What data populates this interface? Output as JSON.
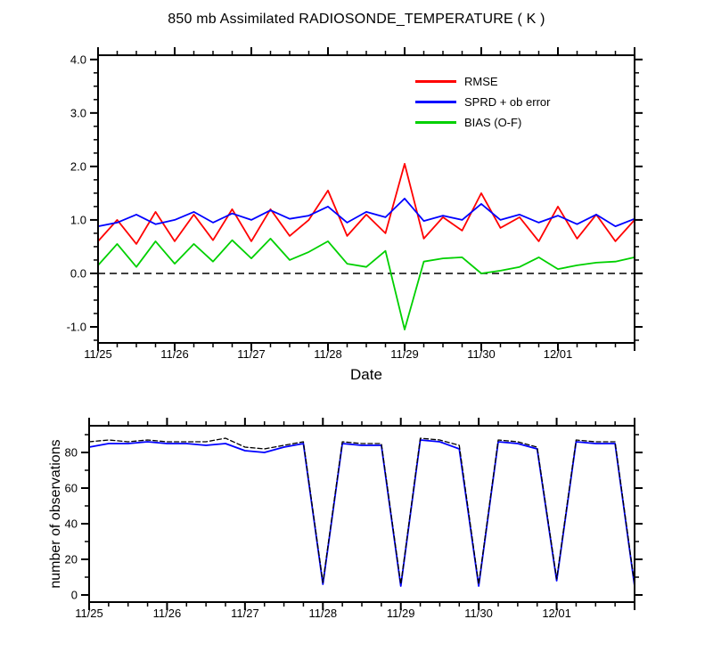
{
  "chart_data": [
    {
      "type": "line",
      "title": "850 mb Assimilated RADIOSONDE_TEMPERATURE ( K )",
      "xlabel": "Date",
      "ylabel": "",
      "ylim": [
        -1.3,
        4.08
      ],
      "yticks": [
        -1.0,
        0.0,
        1.0,
        2.0,
        3.0,
        4.0
      ],
      "ytick_labels": [
        "-1.0",
        "0.0",
        "1.0",
        "2.0",
        "3.0",
        "4.0"
      ],
      "y_minor_step": 0.25,
      "n_points": 29,
      "x_major_every": 4,
      "x_tick_indices": [
        0,
        4,
        8,
        12,
        16,
        20,
        24
      ],
      "x_tick_labels": [
        "11/25",
        "11/26",
        "11/27",
        "11/28",
        "11/29",
        "11/30",
        "12/01"
      ],
      "ref_line_y": 0.0,
      "ref_line_style": "dashed",
      "grid": false,
      "legend_position": "upper-right-inside",
      "series": [
        {
          "name": "RMSE",
          "color": "#ff0000",
          "style": "solid",
          "values": [
            0.6,
            1.0,
            0.55,
            1.15,
            0.6,
            1.1,
            0.62,
            1.2,
            0.6,
            1.2,
            0.7,
            1.0,
            1.55,
            0.7,
            1.1,
            0.75,
            2.05,
            0.65,
            1.05,
            0.8,
            1.5,
            0.85,
            1.05,
            0.6,
            1.25,
            0.65,
            1.1,
            0.6,
            1.0
          ]
        },
        {
          "name": "SPRD + ob error",
          "color": "#0000ff",
          "style": "solid",
          "values": [
            0.88,
            0.95,
            1.1,
            0.92,
            1.0,
            1.15,
            0.95,
            1.12,
            1.0,
            1.18,
            1.02,
            1.08,
            1.25,
            0.95,
            1.15,
            1.05,
            1.4,
            0.98,
            1.08,
            1.0,
            1.3,
            1.0,
            1.1,
            0.95,
            1.08,
            0.92,
            1.1,
            0.88,
            1.02
          ]
        },
        {
          "name": "BIAS (O-F)",
          "color": "#00d000",
          "style": "solid",
          "values": [
            0.15,
            0.55,
            0.12,
            0.6,
            0.18,
            0.55,
            0.22,
            0.62,
            0.28,
            0.65,
            0.25,
            0.4,
            0.6,
            0.18,
            0.12,
            0.42,
            -1.05,
            0.22,
            0.28,
            0.3,
            0.0,
            0.05,
            0.12,
            0.3,
            0.08,
            0.15,
            0.2,
            0.22,
            0.3
          ]
        }
      ]
    },
    {
      "type": "line",
      "title": "",
      "xlabel": "",
      "ylabel": "number of observations",
      "ylim": [
        -4,
        95
      ],
      "yticks": [
        0,
        20,
        40,
        60,
        80
      ],
      "ytick_labels": [
        "0",
        "20",
        "40",
        "60",
        "80"
      ],
      "y_minor_step": 10,
      "n_points": 29,
      "x_major_every": 4,
      "x_tick_indices": [
        0,
        4,
        8,
        12,
        16,
        20,
        24
      ],
      "x_tick_labels": [
        "11/25",
        "11/26",
        "11/27",
        "11/28",
        "11/29",
        "11/30",
        "12/01"
      ],
      "ref_line_y": null,
      "grid": false,
      "series": [
        {
          "name": "solid",
          "color": "#0000ff",
          "style": "solid",
          "values": [
            83,
            85,
            85,
            86,
            85,
            85,
            84,
            85,
            81,
            80,
            83,
            85,
            6,
            85,
            84,
            84,
            5,
            87,
            86,
            82,
            5,
            86,
            85,
            82,
            8,
            86,
            85,
            85,
            5
          ]
        },
        {
          "name": "dashed",
          "color": "#000000",
          "style": "dashed",
          "values": [
            86,
            87,
            86,
            87,
            86,
            86,
            86,
            88,
            83,
            82,
            84,
            86,
            7,
            86,
            85,
            85,
            6,
            88,
            87,
            84,
            6,
            87,
            86,
            83,
            9,
            87,
            86,
            86,
            6
          ]
        }
      ]
    }
  ]
}
